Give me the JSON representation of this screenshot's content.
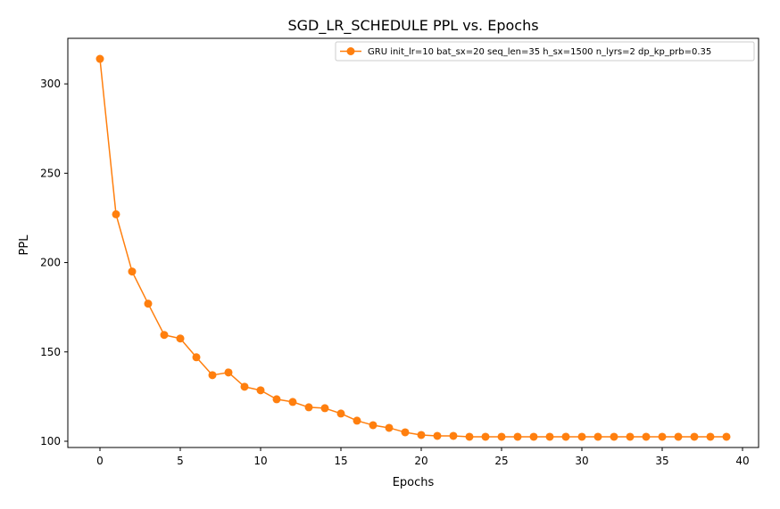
{
  "chart_data": {
    "type": "line",
    "title": "SGD_LR_SCHEDULE PPL vs. Epochs",
    "xlabel": "Epochs",
    "ylabel": "PPL",
    "xlim": [
      -2,
      41
    ],
    "ylim": [
      96.5,
      325.5
    ],
    "xticks": [
      0,
      5,
      10,
      15,
      20,
      25,
      30,
      35,
      40
    ],
    "yticks": [
      100,
      150,
      200,
      250,
      300
    ],
    "grid": false,
    "legend_position": "top-right",
    "series": [
      {
        "name": "GRU init_lr=10 bat_sx=20 seq_len=35 h_sx=1500 n_lyrs=2 dp_kp_prb=0.35",
        "color": "#ff7f0e",
        "marker": "circle",
        "x": [
          0,
          1,
          2,
          3,
          4,
          5,
          6,
          7,
          8,
          9,
          10,
          11,
          12,
          13,
          14,
          15,
          16,
          17,
          18,
          19,
          20,
          21,
          22,
          23,
          24,
          25,
          26,
          27,
          28,
          29,
          30,
          31,
          32,
          33,
          34,
          35,
          36,
          37,
          38,
          39
        ],
        "y": [
          314,
          227,
          195,
          177,
          159.5,
          157.5,
          147,
          137,
          138.5,
          130.5,
          128.5,
          123.5,
          122,
          119,
          118.5,
          115.5,
          111.5,
          109,
          107.5,
          105,
          103.5,
          103,
          103,
          102.5,
          102.5,
          102.5,
          102.5,
          102.5,
          102.5,
          102.5,
          102.5,
          102.5,
          102.5,
          102.5,
          102.5,
          102.5,
          102.5,
          102.5,
          102.5,
          102.5
        ]
      }
    ]
  }
}
